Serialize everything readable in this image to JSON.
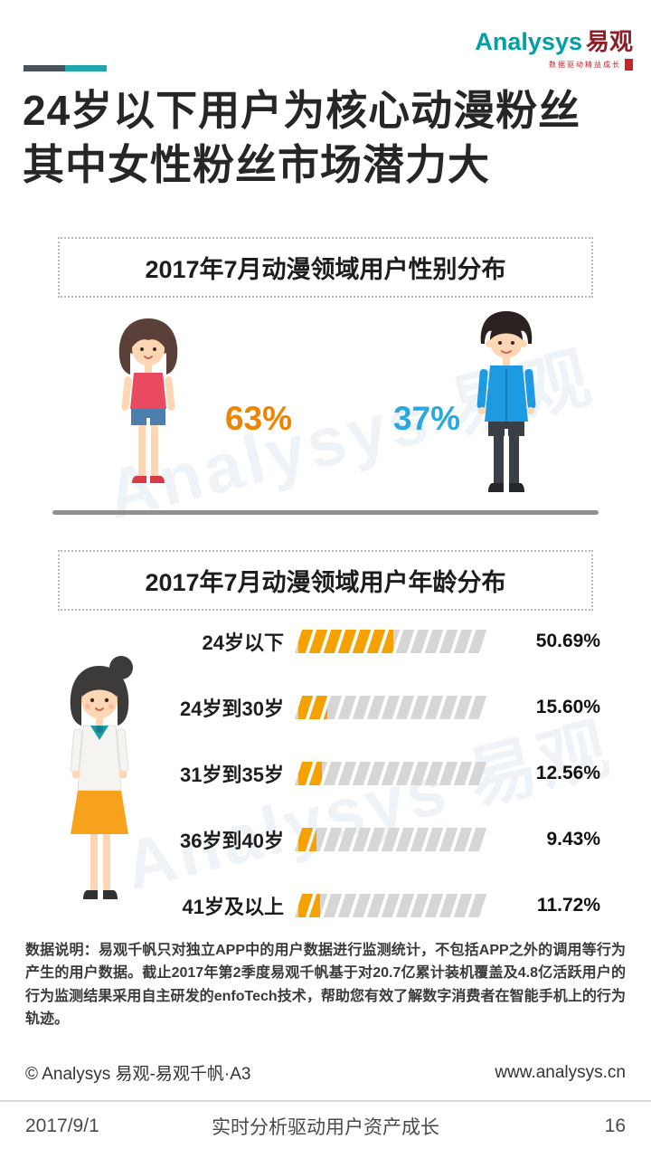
{
  "logo": {
    "brand_en": "Analysys",
    "brand_cn": "易观",
    "tagline": "数据驱动精益成长"
  },
  "watermark": "Analysys 易观",
  "header": {
    "title_line1": "24岁以下用户为核心动漫粉丝",
    "title_line2": "其中女性粉丝市场潜力大"
  },
  "gender_section": {
    "title": "2017年7月动漫领域用户性别分布",
    "female_label": "63%",
    "male_label": "37%"
  },
  "age_section": {
    "title": "2017年7月动漫领域用户年龄分布"
  },
  "chart_data": [
    {
      "type": "pictogram",
      "title": "2017年7月动漫领域用户性别分布",
      "categories": [
        "女性",
        "男性"
      ],
      "values": [
        63,
        37
      ],
      "unit": "%",
      "female_color": "#f08300",
      "male_color": "#29a9e0"
    },
    {
      "type": "bar",
      "orientation": "horizontal",
      "title": "2017年7月动漫领域用户年龄分布",
      "categories": [
        "24岁以下",
        "24岁到30岁",
        "31岁到35岁",
        "36岁到40岁",
        "41岁及以上"
      ],
      "values": [
        50.69,
        15.6,
        12.56,
        9.43,
        11.72
      ],
      "value_labels": [
        "50.69%",
        "15.60%",
        "12.56%",
        "9.43%",
        "11.72%"
      ],
      "xlim": [
        0,
        100
      ],
      "segments": 13,
      "bar_color": "#f5a100",
      "track_color": "#d6d6d6"
    }
  ],
  "note": {
    "text": "数据说明：易观千帆只对独立APP中的用户数据进行监测统计，不包括APP之外的调用等行为产生的用户数据。截止2017年第2季度易观千帆基于对20.7亿累计装机覆盖及4.8亿活跃用户的行为监测结果采用自主研发的enfoTech技术，帮助您有效了解数字消费者在智能手机上的行为轨迹。"
  },
  "footer": {
    "copyright": "© Analysys 易观-易观千帆·A3",
    "website": "www.analysys.cn",
    "date": "2017/9/1",
    "slogan": "实时分析驱动用户资产成长",
    "page": "16"
  }
}
